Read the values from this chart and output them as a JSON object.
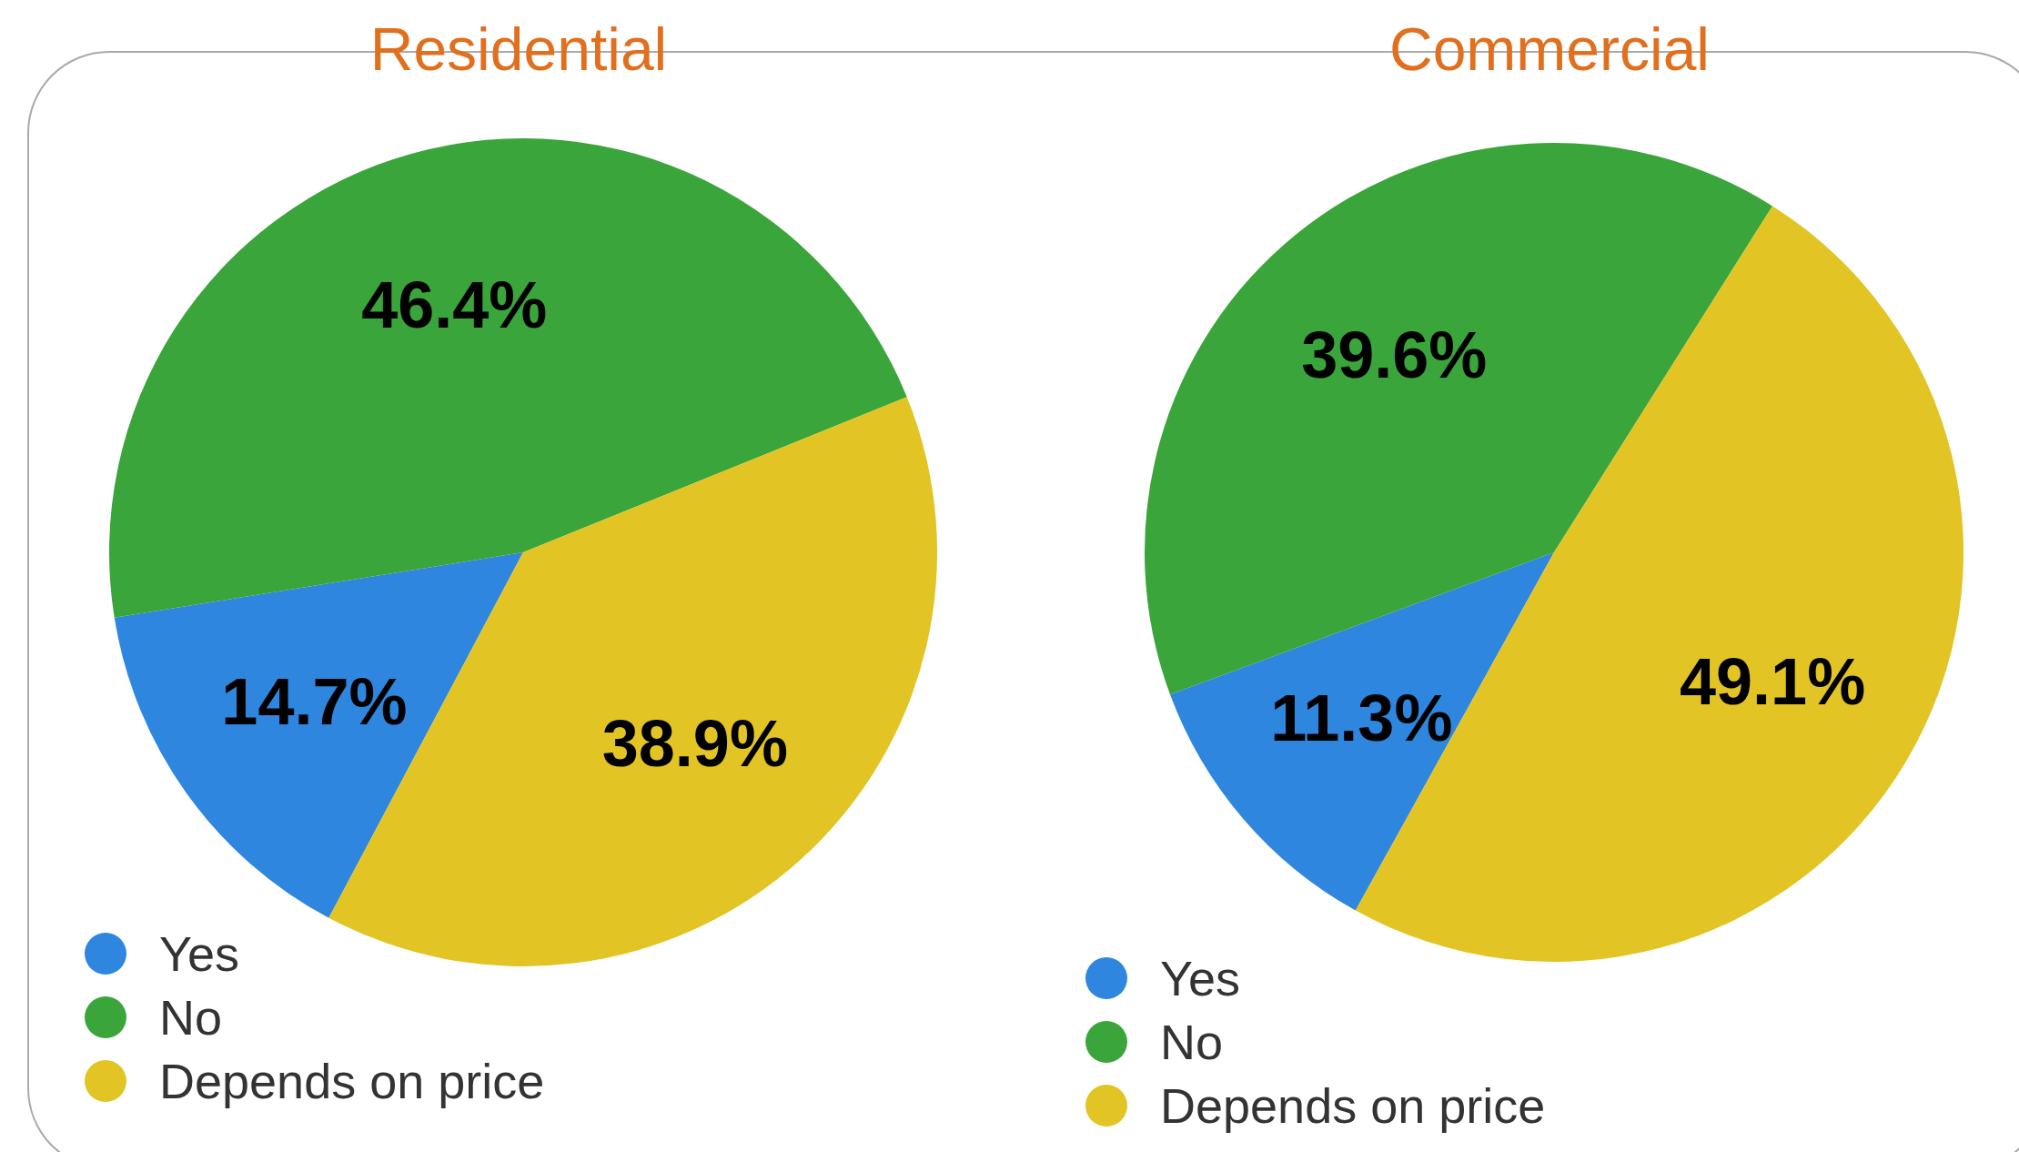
{
  "chart_data": [
    {
      "type": "pie",
      "title": "Residential",
      "categories": [
        "Yes",
        "No",
        "Depends on price"
      ],
      "values": [
        14.7,
        46.4,
        38.9
      ],
      "colors": [
        "#2e86df",
        "#3aa53a",
        "#e2c424"
      ],
      "value_labels": [
        "14.7%",
        "46.4%",
        "38.9%"
      ],
      "legend": "bottom left"
    },
    {
      "type": "pie",
      "title": "Commercial",
      "categories": [
        "Yes",
        "No",
        "Depends on price"
      ],
      "values": [
        11.3,
        39.6,
        49.1
      ],
      "colors": [
        "#2e86df",
        "#3aa53a",
        "#e2c424"
      ],
      "value_labels": [
        "11.3%",
        "39.6%",
        "49.1%"
      ],
      "legend": "bottom left"
    }
  ]
}
